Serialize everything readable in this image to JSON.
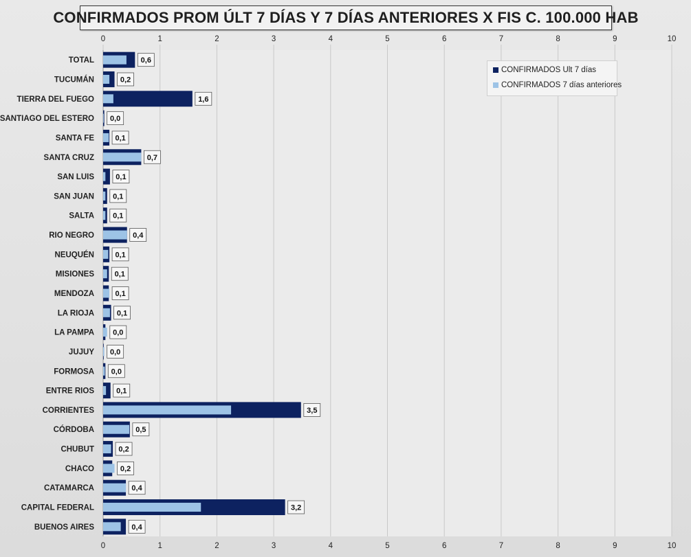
{
  "chart_data": {
    "type": "bar",
    "orientation": "horizontal",
    "title": "CONFIRMADOS PROM ÚLT 7 DÍAS Y 7 DÍAS ANTERIORES X FIS C. 100.000 HAB",
    "categories": [
      "TOTAL",
      "TUCUMÁN",
      "TIERRA  DEL FUEGO",
      "SANTIAGO  DEL ESTERO",
      "SANTA FE",
      "SANTA CRUZ",
      "SAN LUIS",
      "SAN JUAN",
      "SALTA",
      "RIO NEGRO",
      "NEUQUÉN",
      "MISIONES",
      "MENDOZA",
      "LA RIOJA",
      "LA PAMPA",
      "JUJUY",
      "FORMOSA",
      "ENTRE RIOS",
      "CORRIENTES",
      "CÓRDOBA",
      "CHUBUT",
      "CHACO",
      "CATAMARCA",
      "CAPITAL FEDERAL",
      "BUENOS AIRES"
    ],
    "series": [
      {
        "name": "CONFIRMADOS Ult 7 días",
        "color": "#0d2260",
        "values": [
          0.56,
          0.2,
          1.57,
          0.02,
          0.11,
          0.67,
          0.12,
          0.07,
          0.07,
          0.42,
          0.11,
          0.1,
          0.1,
          0.14,
          0.04,
          0.01,
          0.04,
          0.13,
          3.48,
          0.47,
          0.17,
          0.16,
          0.4,
          3.2,
          0.4
        ]
      },
      {
        "name": "CONFIRMADOS 7 días anteriores",
        "color": "#9dc3e6",
        "values": [
          0.41,
          0.11,
          0.18,
          0.01,
          0.1,
          0.67,
          0.04,
          0.04,
          0.04,
          0.42,
          0.09,
          0.07,
          0.11,
          0.12,
          0.07,
          0.02,
          0.03,
          0.05,
          2.25,
          0.46,
          0.14,
          0.2,
          0.4,
          1.72,
          0.31
        ]
      }
    ],
    "data_labels": [
      "0,6",
      "0,2",
      "1,6",
      "0,0",
      "0,1",
      "0,7",
      "0,1",
      "0,1",
      "0,1",
      "0,4",
      "0,1",
      "0,1",
      "0,1",
      "0,1",
      "0,0",
      "0,0",
      "0,0",
      "0,1",
      "3,5",
      "0,5",
      "0,2",
      "0,2",
      "0,4",
      "3,2",
      "0,4"
    ],
    "xlim": [
      0,
      10
    ],
    "xticks": [
      "0",
      "1",
      "2",
      "3",
      "4",
      "5",
      "6",
      "7",
      "8",
      "9",
      "10"
    ],
    "grid": true,
    "legend_position": "top-right"
  }
}
